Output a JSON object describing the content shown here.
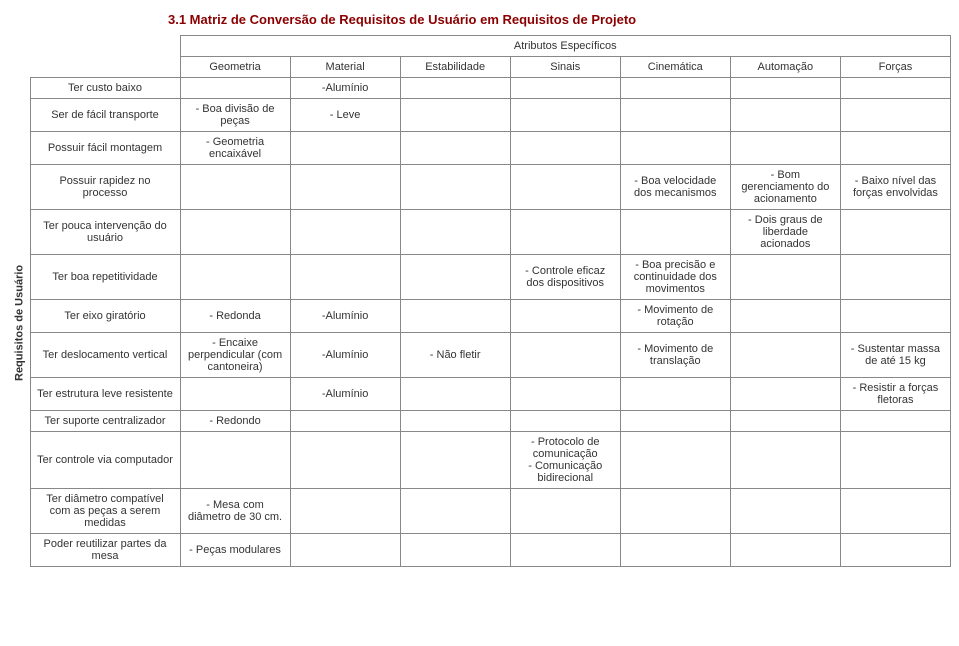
{
  "title": "3.1 Matriz de Conversão de Requisitos de Usuário em Requisitos de Projeto",
  "sideLabel": "Requisitos de Usuário",
  "groupHeader": "Atributos Específicos",
  "cols": {
    "c1": "Geometria",
    "c2": "Material",
    "c3": "Estabilidade",
    "c4": "Sinais",
    "c5": "Cinemática",
    "c6": "Automação",
    "c7": "Forças"
  },
  "rows": {
    "r1": {
      "label": "Ter custo baixo",
      "c2": "-Alumínio"
    },
    "r2": {
      "label": "Ser de fácil transporte",
      "c1": "- Boa divisão de peças",
      "c2": "- Leve"
    },
    "r3": {
      "label": "Possuir fácil montagem",
      "c1": "- Geometria encaixável"
    },
    "r4": {
      "label": "Possuir rapidez no processo",
      "c5": "- Boa velocidade dos mecanismos",
      "c6": "- Bom gerenciamento do acionamento",
      "c7": "- Baixo nível das forças envolvidas"
    },
    "r5": {
      "label": "Ter pouca intervenção do usuário",
      "c6": "- Dois graus de liberdade acionados"
    },
    "r6": {
      "label": "Ter boa repetitividade",
      "c4": "- Controle eficaz dos dispositivos",
      "c5": "- Boa precisão e continuidade dos movimentos"
    },
    "r7": {
      "label": "Ter eixo giratório",
      "c1": "- Redonda",
      "c2": "-Alumínio",
      "c5": "- Movimento de rotação"
    },
    "r8": {
      "label": "Ter deslocamento vertical",
      "c1": "- Encaixe perpendicular (com cantoneira)",
      "c2": "-Alumínio",
      "c3": "- Não fletir",
      "c5": "- Movimento de translação",
      "c7": "- Sustentar massa de até 15 kg"
    },
    "r9": {
      "label": "Ter estrutura leve resistente",
      "c2": "-Alumínio",
      "c7": "- Resistir a forças fletoras"
    },
    "r10": {
      "label": "Ter suporte centralizador",
      "c1": "- Redondo"
    },
    "r11": {
      "label": "Ter controle via computador",
      "c4": "- Protocolo de comunicação\n- Comunicação bidirecional"
    },
    "r12": {
      "label": "Ter diâmetro compatível com as peças a serem medidas",
      "c1": "- Mesa com diâmetro de 30 cm."
    },
    "r13": {
      "label": "Poder reutilizar partes da mesa",
      "c1": "- Peças modulares"
    }
  }
}
